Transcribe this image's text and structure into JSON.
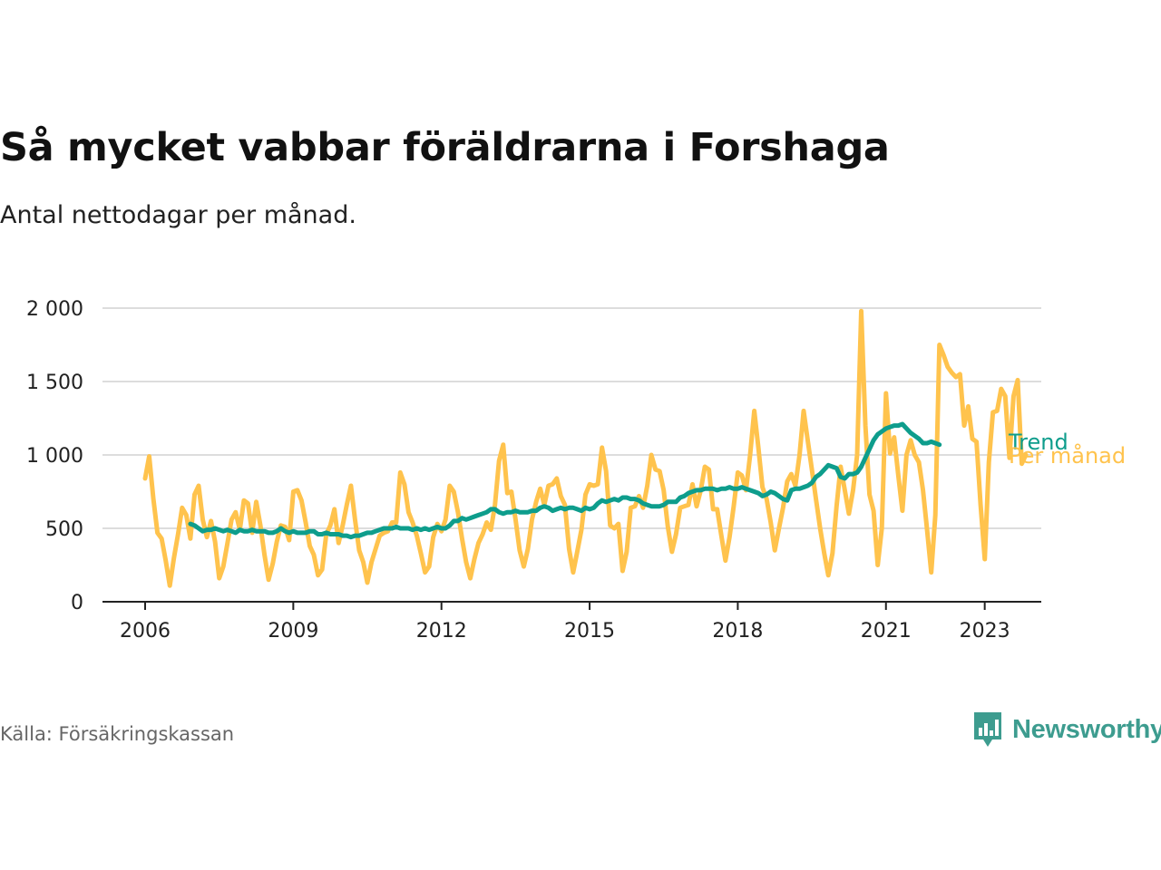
{
  "header": {
    "title": "Så mycket vabbar föräldrarna i Forshaga",
    "subtitle": "Antal nettodagar per månad."
  },
  "footer": {
    "source": "Källa: Försäkringskassan",
    "brand": "Newsworthy",
    "brand_icon": "bar-chart-speech-bubble-icon"
  },
  "colors": {
    "monthly": "#ffc34d",
    "trend": "#0e9d8c",
    "grid": "#dddddd",
    "axis": "#222222",
    "brand": "#3d9c8f"
  },
  "chart_data": {
    "type": "line",
    "ylim": [
      0,
      2000
    ],
    "yticks": [
      {
        "value": 0,
        "label": "0"
      },
      {
        "value": 500,
        "label": "500"
      },
      {
        "value": 1000,
        "label": "1 000"
      },
      {
        "value": 1500,
        "label": "1 500"
      },
      {
        "value": 2000,
        "label": "2 000"
      }
    ],
    "xlim": [
      2006.0,
      2023.75
    ],
    "xticks": [
      {
        "value": 2006,
        "label": "2006"
      },
      {
        "value": 2009,
        "label": "2009"
      },
      {
        "value": 2012,
        "label": "2012"
      },
      {
        "value": 2015,
        "label": "2015"
      },
      {
        "value": 2018,
        "label": "2018"
      },
      {
        "value": 2021,
        "label": "2021"
      },
      {
        "value": 2023,
        "label": "2023"
      }
    ],
    "grid": true,
    "series": [
      {
        "name": "Per månad",
        "start": "2006-01",
        "values": [
          840,
          990,
          700,
          470,
          430,
          280,
          110,
          300,
          460,
          640,
          590,
          430,
          730,
          790,
          560,
          440,
          550,
          410,
          160,
          240,
          400,
          560,
          610,
          490,
          690,
          670,
          470,
          680,
          520,
          320,
          150,
          260,
          410,
          520,
          510,
          420,
          750,
          760,
          690,
          540,
          380,
          320,
          180,
          220,
          460,
          520,
          630,
          400,
          520,
          660,
          790,
          560,
          350,
          270,
          130,
          270,
          360,
          450,
          470,
          480,
          540,
          540,
          880,
          800,
          610,
          540,
          450,
          330,
          200,
          240,
          440,
          530,
          480,
          560,
          790,
          750,
          610,
          430,
          270,
          160,
          290,
          400,
          460,
          540,
          490,
          660,
          960,
          1070,
          740,
          750,
          560,
          350,
          240,
          360,
          560,
          680,
          770,
          660,
          790,
          800,
          840,
          720,
          660,
          360,
          200,
          340,
          490,
          730,
          800,
          790,
          800,
          1050,
          890,
          520,
          500,
          530,
          210,
          340,
          640,
          650,
          720,
          640,
          790,
          1000,
          900,
          890,
          760,
          510,
          340,
          460,
          640,
          650,
          660,
          800,
          650,
          760,
          920,
          900,
          630,
          630,
          450,
          280,
          440,
          650,
          880,
          860,
          760,
          1000,
          1300,
          1050,
          780,
          700,
          540,
          350,
          500,
          640,
          820,
          870,
          790,
          1000,
          1300,
          1100,
          900,
          700,
          500,
          330,
          180,
          330,
          650,
          920,
          760,
          600,
          760,
          1000,
          1980,
          1200,
          730,
          620,
          250,
          500,
          1420,
          1010,
          1120,
          860,
          620,
          1000,
          1100,
          1000,
          950,
          760,
          490,
          200,
          590,
          1750,
          1680,
          1600,
          1560,
          1530,
          1550,
          1200,
          1330,
          1110,
          1090,
          660,
          290,
          950,
          1290,
          1300,
          1450,
          1400,
          980,
          1400,
          1510,
          940,
          1000
        ]
      },
      {
        "name": "Trend",
        "start": "2006-12",
        "values": [
          530,
          520,
          500,
          480,
          490,
          490,
          500,
          490,
          480,
          490,
          480,
          470,
          490,
          480,
          480,
          490,
          480,
          480,
          480,
          470,
          470,
          480,
          500,
          480,
          470,
          480,
          470,
          470,
          470,
          480,
          480,
          460,
          460,
          470,
          460,
          460,
          460,
          450,
          450,
          440,
          450,
          450,
          460,
          470,
          470,
          480,
          490,
          500,
          500,
          500,
          510,
          500,
          500,
          500,
          490,
          500,
          490,
          500,
          490,
          500,
          510,
          500,
          500,
          520,
          550,
          550,
          570,
          560,
          570,
          580,
          590,
          600,
          610,
          630,
          630,
          610,
          600,
          610,
          610,
          620,
          610,
          610,
          610,
          620,
          620,
          640,
          650,
          640,
          620,
          630,
          640,
          630,
          640,
          640,
          630,
          620,
          640,
          630,
          640,
          670,
          690,
          680,
          690,
          700,
          690,
          710,
          710,
          700,
          700,
          690,
          670,
          660,
          650,
          650,
          650,
          660,
          680,
          680,
          680,
          710,
          720,
          740,
          750,
          760,
          760,
          770,
          770,
          770,
          760,
          770,
          770,
          780,
          770,
          770,
          780,
          770,
          760,
          750,
          740,
          720,
          730,
          750,
          740,
          720,
          700,
          690,
          760,
          770,
          770,
          780,
          790,
          810,
          850,
          870,
          900,
          930,
          920,
          910,
          850,
          840,
          870,
          870,
          880,
          920,
          980,
          1040,
          1100,
          1140,
          1160,
          1180,
          1190,
          1200,
          1200,
          1210,
          1180,
          1150,
          1130,
          1110,
          1080,
          1080,
          1090,
          1080,
          1070
        ]
      }
    ]
  }
}
